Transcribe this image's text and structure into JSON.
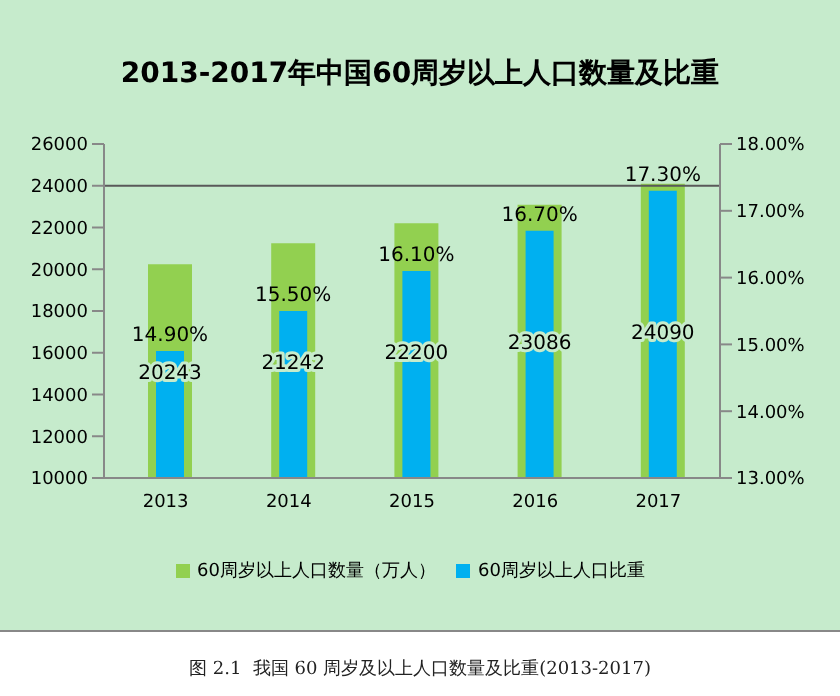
{
  "chart_data": {
    "type": "bar",
    "title": "2013-2017年中国60周岁以上人口数量及比重",
    "categories": [
      "2013",
      "2014",
      "2015",
      "2016",
      "2017"
    ],
    "series": [
      {
        "name": "60周岁以上人口数量（万人）",
        "color": "#92d050",
        "values": [
          20243,
          21242,
          22200,
          23086,
          24090
        ],
        "value_labels": [
          "20243",
          "21242",
          "22200",
          "23086",
          "24090"
        ]
      },
      {
        "name": "60周岁以上人口比重",
        "color": "#00b0f0",
        "axis": "y2",
        "values": [
          14.9,
          15.5,
          16.1,
          16.7,
          17.3
        ],
        "value_labels": [
          "14.90%",
          "15.50%",
          "16.10%",
          "16.70%",
          "17.30%"
        ]
      }
    ],
    "ylim": [
      10000,
      26000
    ],
    "yticks": [
      10000,
      12000,
      14000,
      16000,
      18000,
      20000,
      22000,
      24000,
      26000
    ],
    "y2lim": [
      13,
      18
    ],
    "y2ticks": [
      {
        "value": 13,
        "label": "13.00%"
      },
      {
        "value": 14,
        "label": "14.00%"
      },
      {
        "value": 15,
        "label": "15.00%"
      },
      {
        "value": 16,
        "label": "16.00%"
      },
      {
        "value": 17,
        "label": "17.00%"
      },
      {
        "value": 18,
        "label": "18.00%"
      }
    ],
    "ref_lines": [
      {
        "axis": "y",
        "value": 24000,
        "color": "#595959"
      }
    ],
    "legend": "bottom",
    "annotations": [
      "图 2.1  我国 60 周岁及以上人口数量及比重(2013-2017)"
    ]
  }
}
